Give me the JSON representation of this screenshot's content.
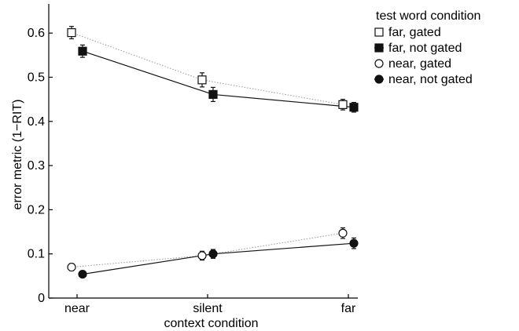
{
  "chart_data": {
    "type": "line",
    "categories": [
      "near",
      "silent",
      "far"
    ],
    "xlabel": "context condition",
    "ylabel": "error metric (1−RIT)",
    "ylim": [
      0,
      0.65
    ],
    "yticks": [
      "0",
      "0.1",
      "0.2",
      "0.3",
      "0.4",
      "0.5",
      "0.6"
    ],
    "grid": false,
    "legend": {
      "title": "test word condition",
      "placement": "outside-right-top"
    },
    "series": [
      {
        "name": "far, gated",
        "marker": "open-square",
        "line": "dotted",
        "offset": -1,
        "values": [
          0.601,
          0.494,
          0.438
        ],
        "errors": [
          0.014,
          0.016,
          0.012
        ]
      },
      {
        "name": "far, not gated",
        "marker": "filled-square",
        "line": "solid",
        "offset": 1,
        "values": [
          0.559,
          0.461,
          0.432
        ],
        "errors": [
          0.014,
          0.016,
          0.011
        ]
      },
      {
        "name": "near, gated",
        "marker": "open-circle",
        "line": "dotted",
        "offset": -1,
        "values": [
          0.07,
          0.096,
          0.147
        ],
        "errors": [
          0.008,
          0.01,
          0.012
        ]
      },
      {
        "name": "near, not gated",
        "marker": "filled-circle",
        "line": "solid",
        "offset": 1,
        "values": [
          0.054,
          0.1,
          0.124
        ],
        "errors": [
          0.004,
          0.01,
          0.012
        ]
      }
    ]
  }
}
